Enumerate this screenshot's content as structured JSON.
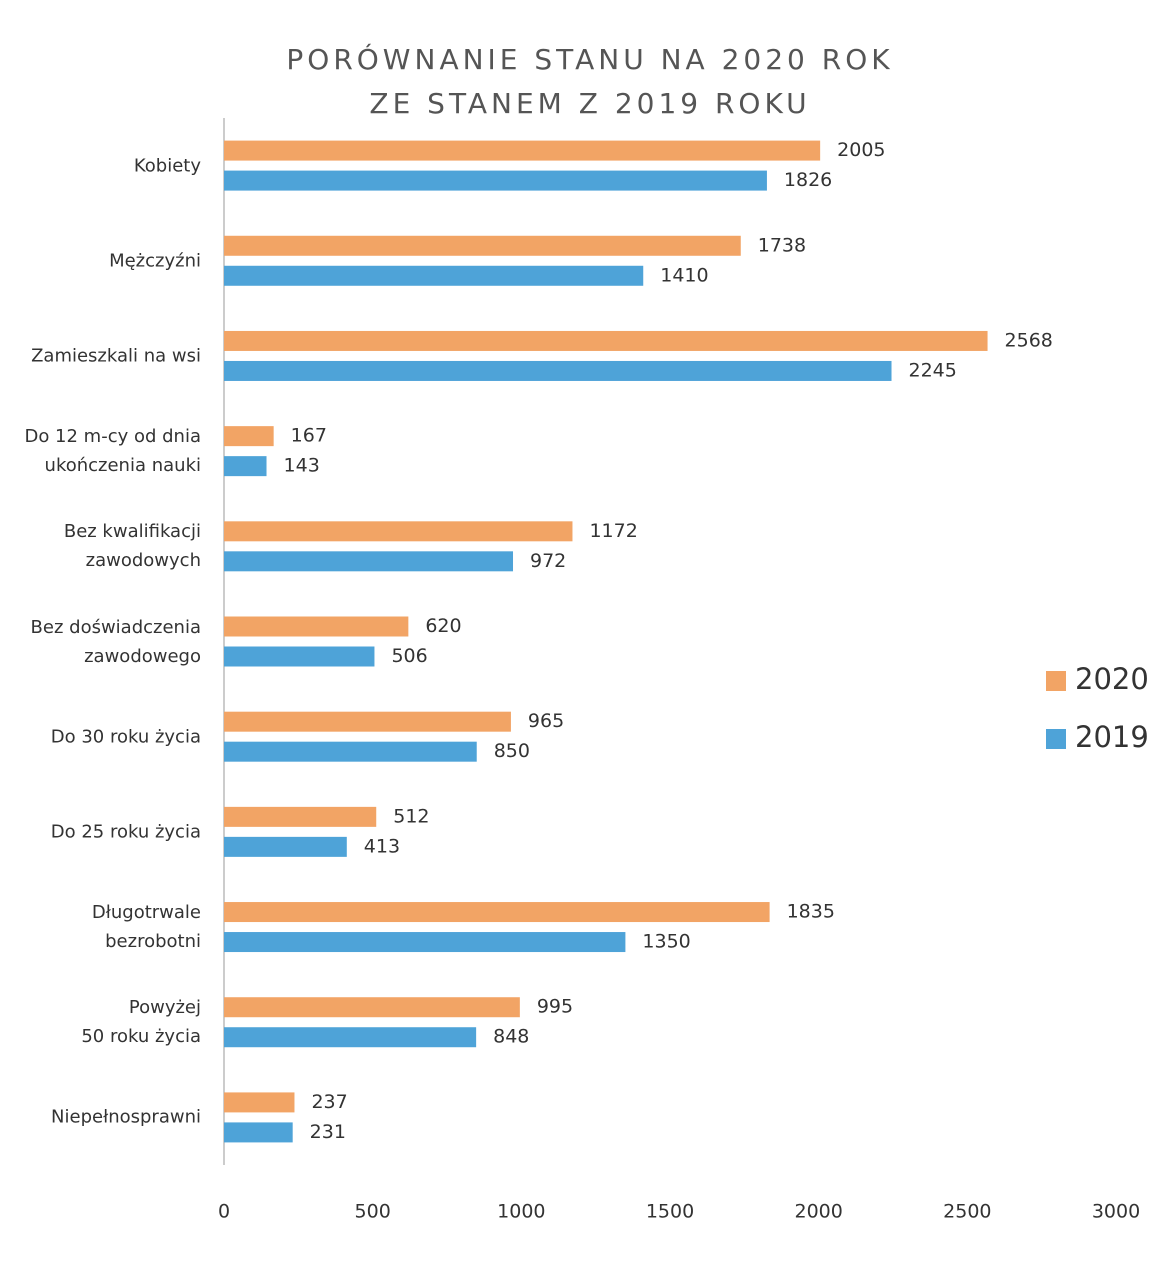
{
  "chart_data": {
    "type": "bar",
    "orientation": "horizontal",
    "title": "PORÓWNANIE STANU NA 2020 ROK\nZE STANEM Z 2019 ROKU",
    "categories": [
      "Kobiety",
      "Mężczyźni",
      "Zamieszkali na wsi",
      "Do 12 m-cy od dnia\nukończenia nauki",
      "Bez kwalifikacji\nzawodowych",
      "Bez doświadczenia\nzawodowego",
      "Do 30 roku życia",
      "Do 25 roku życia",
      "Długotrwale\nbezrobotni",
      "Powyżej\n50 roku życia",
      "Niepełnosprawni"
    ],
    "series": [
      {
        "name": "2020",
        "color": "#f2a465",
        "values": [
          2005,
          1738,
          2568,
          167,
          1172,
          620,
          965,
          512,
          1835,
          995,
          237
        ]
      },
      {
        "name": "2019",
        "color": "#4ea3d8",
        "values": [
          1826,
          1410,
          2245,
          143,
          972,
          506,
          850,
          413,
          1350,
          848,
          231
        ]
      }
    ],
    "xlim": [
      0,
      3000
    ],
    "xticks": [
      0,
      500,
      1000,
      1500,
      2000,
      2500,
      3000
    ],
    "grid": false,
    "legend": "right"
  }
}
